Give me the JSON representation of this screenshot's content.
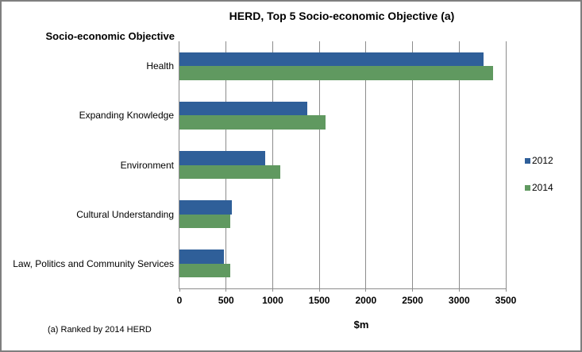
{
  "window": {
    "background": "#ffffff",
    "border_color": "#7f7f7f"
  },
  "chart_data": {
    "type": "bar",
    "orientation": "horizontal",
    "title": "HERD, Top 5 Socio-economic Objective (a)",
    "category_axis_title": "Socio-economic Objective",
    "value_axis_title": "$m",
    "footnote": "(a) Ranked by 2014 HERD",
    "categories": [
      "Health",
      "Expanding Knowledge",
      "Environment",
      "Cultural Understanding",
      "Law, Politics and Community Services"
    ],
    "series": [
      {
        "name": "2012",
        "color": "#2F5F99",
        "values": [
          3260,
          1375,
          920,
          560,
          480
        ]
      },
      {
        "name": "2014",
        "color": "#609960",
        "values": [
          3365,
          1565,
          1080,
          545,
          545
        ]
      }
    ],
    "xlim": [
      0,
      3500
    ],
    "xticks": [
      0,
      500,
      1000,
      1500,
      2000,
      2500,
      3000,
      3500
    ],
    "grid": true,
    "gridline_color": "#8c8c8c",
    "legend_position": "right"
  }
}
